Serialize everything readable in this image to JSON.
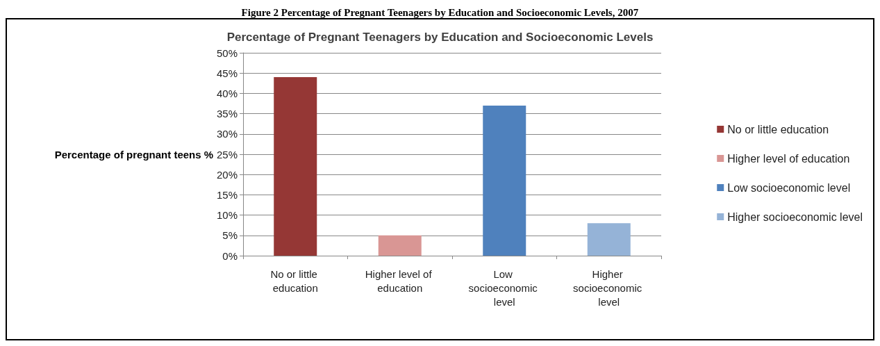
{
  "chart_data": {
    "type": "bar",
    "title": "Percentage of Pregnant Teenagers by Education and Socioeconomic Levels",
    "annotations": [
      "Figure 2 Percentage of Pregnant Teenagers by Education and Socioeconomic Levels, 2007"
    ],
    "ylabel": "Percentage of pregnant teens %",
    "categories": [
      "No or little education",
      "Higher level of education",
      "Low socioeconomic level",
      "Higher socioeconomic level"
    ],
    "stacked": true,
    "series": [
      {
        "name": "No or little education",
        "color": "#953735",
        "values": [
          44,
          null,
          null,
          null
        ]
      },
      {
        "name": "Higher level of education",
        "color": "#d99694",
        "values": [
          null,
          5,
          null,
          null
        ]
      },
      {
        "name": "Low socioeconomic level",
        "color": "#4f81bd",
        "values": [
          null,
          null,
          37,
          null
        ]
      },
      {
        "name": "Higher socioeconomic level",
        "color": "#95b3d7",
        "values": [
          null,
          null,
          null,
          8
        ]
      }
    ],
    "ylim": [
      0,
      50
    ],
    "yticks": [
      {
        "value": 0,
        "label": "0%"
      },
      {
        "value": 5,
        "label": "5%"
      },
      {
        "value": 10,
        "label": "10%"
      },
      {
        "value": 15,
        "label": "15%"
      },
      {
        "value": 20,
        "label": "20%"
      },
      {
        "value": 25,
        "label": "25%"
      },
      {
        "value": 30,
        "label": "30%"
      },
      {
        "value": 35,
        "label": "35%"
      },
      {
        "value": 40,
        "label": "40%"
      },
      {
        "value": 45,
        "label": "45%"
      },
      {
        "value": 50,
        "label": "50%"
      }
    ],
    "grid": "y",
    "legend": "right"
  }
}
